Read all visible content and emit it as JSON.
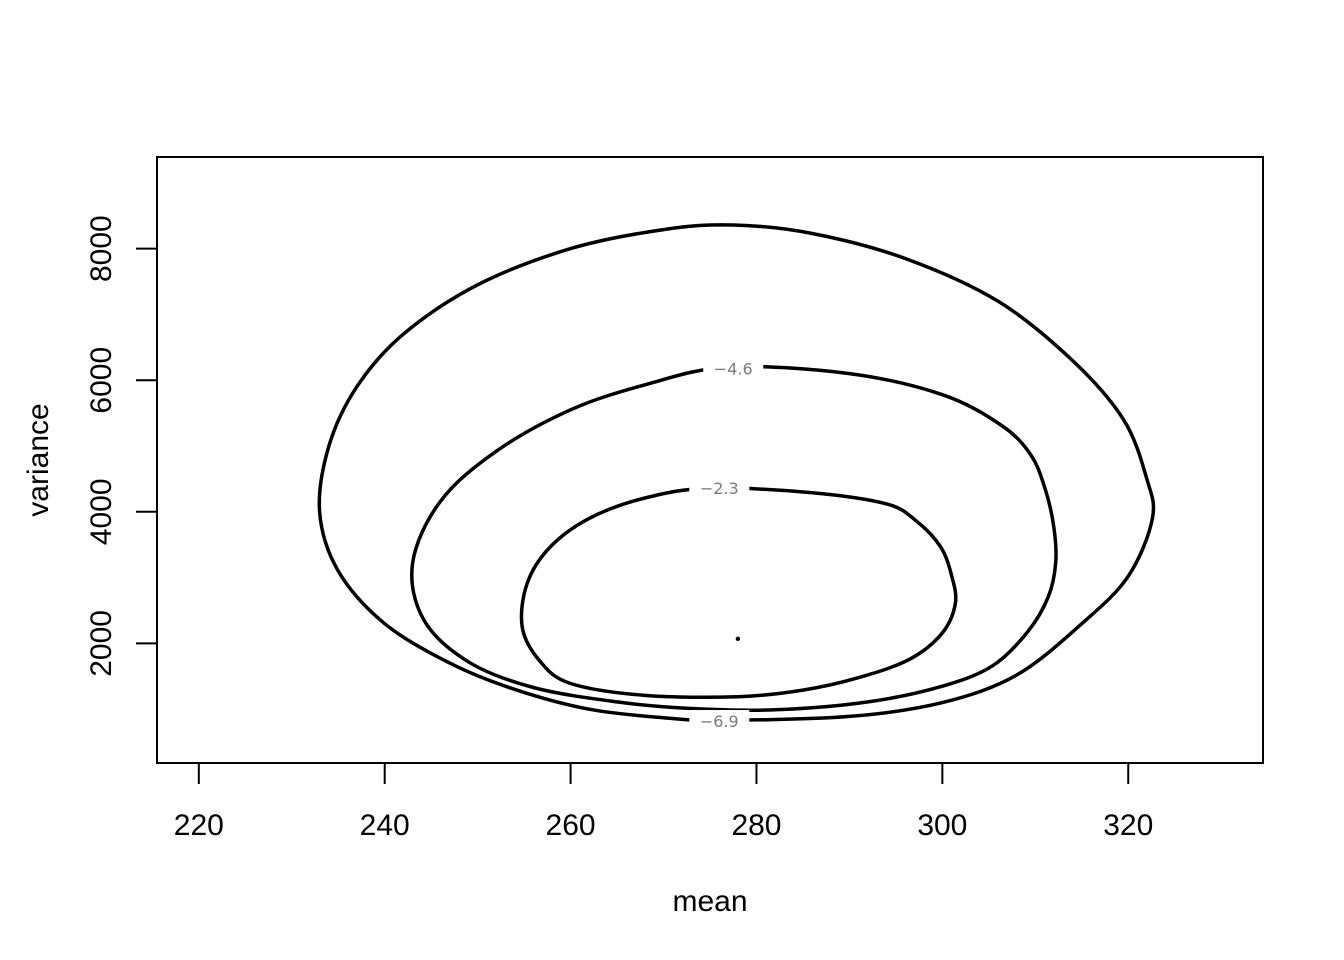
{
  "chart_data": {
    "type": "contour",
    "title": "",
    "xlabel": "mean",
    "ylabel": "variance",
    "xlim": [
      215.5,
      334.5
    ],
    "ylim": [
      182,
      9393
    ],
    "xticks": [
      220,
      240,
      260,
      280,
      300,
      320
    ],
    "yticks": [
      2000,
      4000,
      6000,
      8000
    ],
    "xtick_labels": [
      "220",
      "240",
      "260",
      "280",
      "300",
      "320"
    ],
    "ytick_labels": [
      "2000",
      "4000",
      "6000",
      "8000"
    ],
    "grid": false,
    "legend": "none",
    "maximum_point": {
      "x": 278.0,
      "y": 2070
    },
    "contours": [
      {
        "level": -2.3,
        "label": "−2.3",
        "label_at": {
          "x": 276,
          "y": 4360
        },
        "points": [
          [
            275,
            4360
          ],
          [
            286,
            4290
          ],
          [
            294,
            4120
          ],
          [
            297.2,
            3860
          ],
          [
            299.8,
            3470
          ],
          [
            301,
            3030
          ],
          [
            301.4,
            2610
          ],
          [
            300,
            2160
          ],
          [
            296.5,
            1760
          ],
          [
            291,
            1480
          ],
          [
            285,
            1290
          ],
          [
            278,
            1190
          ],
          [
            268,
            1210
          ],
          [
            260,
            1390
          ],
          [
            256.7,
            1730
          ],
          [
            254.8,
            2240
          ],
          [
            255.3,
            2900
          ],
          [
            257.7,
            3450
          ],
          [
            262,
            3900
          ],
          [
            268,
            4210
          ],
          [
            275,
            4360
          ]
        ]
      },
      {
        "level": -4.6,
        "label": "−4.6",
        "label_at": {
          "x": 277.5,
          "y": 6180
        },
        "points": [
          [
            277,
            6200
          ],
          [
            290,
            6100
          ],
          [
            300,
            5780
          ],
          [
            306.3,
            5320
          ],
          [
            309.5,
            4870
          ],
          [
            311.1,
            4330
          ],
          [
            312,
            3760
          ],
          [
            312.2,
            3230
          ],
          [
            311.4,
            2710
          ],
          [
            309.2,
            2180
          ],
          [
            305.4,
            1660
          ],
          [
            300,
            1350
          ],
          [
            292,
            1110
          ],
          [
            282,
            990
          ],
          [
            273,
            1010
          ],
          [
            265,
            1110
          ],
          [
            256,
            1330
          ],
          [
            249,
            1720
          ],
          [
            244.2,
            2360
          ],
          [
            243,
            3220
          ],
          [
            246,
            4160
          ],
          [
            252,
            4920
          ],
          [
            260,
            5550
          ],
          [
            268,
            5930
          ],
          [
            277,
            6200
          ]
        ]
      },
      {
        "level": -6.9,
        "label": "−6.9",
        "label_at": {
          "x": 276,
          "y": 820
        },
        "points": [
          [
            276,
            830
          ],
          [
            290,
            890
          ],
          [
            300,
            1100
          ],
          [
            308,
            1520
          ],
          [
            315,
            2300
          ],
          [
            320,
            3020
          ],
          [
            322.6,
            3900
          ],
          [
            322,
            4500
          ],
          [
            319.5,
            5400
          ],
          [
            314,
            6300
          ],
          [
            306,
            7200
          ],
          [
            296,
            7850
          ],
          [
            286,
            8230
          ],
          [
            277.5,
            8360
          ],
          [
            270,
            8290
          ],
          [
            260,
            8000
          ],
          [
            250,
            7450
          ],
          [
            242,
            6700
          ],
          [
            237,
            5900
          ],
          [
            234,
            5000
          ],
          [
            233,
            4000
          ],
          [
            235,
            3100
          ],
          [
            240,
            2300
          ],
          [
            247,
            1700
          ],
          [
            254,
            1300
          ],
          [
            262,
            1000
          ],
          [
            270,
            870
          ],
          [
            276,
            830
          ]
        ]
      }
    ]
  }
}
